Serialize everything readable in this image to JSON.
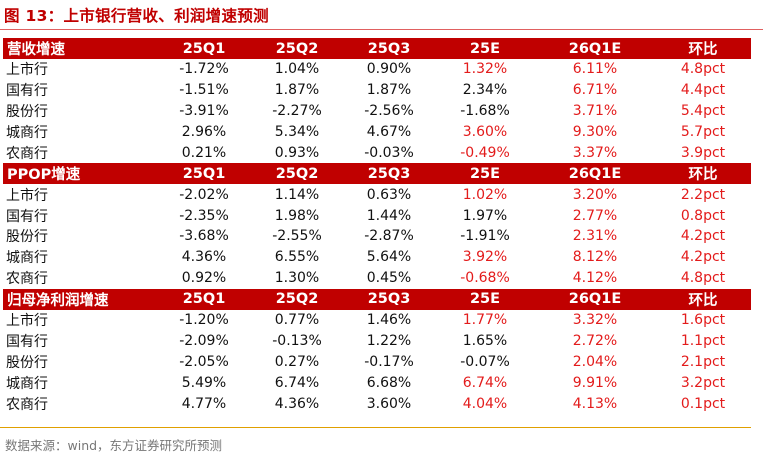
{
  "title": "图 13：上市银行营收、利润增速预测",
  "columns": [
    "25Q1",
    "25Q2",
    "25Q3",
    "25E",
    "26Q1E",
    "环比"
  ],
  "sections": [
    {
      "label": "营收增速",
      "rows": [
        {
          "name": "上市行",
          "cells": [
            "-1.72%",
            "1.04%",
            "0.90%",
            "1.32%",
            "6.11%",
            "4.8pct"
          ]
        },
        {
          "name": "国有行",
          "cells": [
            "-1.51%",
            "1.87%",
            "1.87%",
            "2.34%",
            "6.71%",
            "4.4pct"
          ]
        },
        {
          "name": "股份行",
          "cells": [
            "-3.91%",
            "-2.27%",
            "-2.56%",
            "-1.68%",
            "3.71%",
            "5.4pct"
          ]
        },
        {
          "name": "城商行",
          "cells": [
            "2.96%",
            "5.34%",
            "4.67%",
            "3.60%",
            "9.30%",
            "5.7pct"
          ]
        },
        {
          "name": "农商行",
          "cells": [
            "0.21%",
            "0.93%",
            "-0.03%",
            "-0.49%",
            "3.37%",
            "3.9pct"
          ]
        }
      ]
    },
    {
      "label": "PPOP增速",
      "rows": [
        {
          "name": "上市行",
          "cells": [
            "-2.02%",
            "1.14%",
            "0.63%",
            "1.02%",
            "3.20%",
            "2.2pct"
          ]
        },
        {
          "name": "国有行",
          "cells": [
            "-2.35%",
            "1.98%",
            "1.44%",
            "1.97%",
            "2.77%",
            "0.8pct"
          ]
        },
        {
          "name": "股份行",
          "cells": [
            "-3.68%",
            "-2.55%",
            "-2.87%",
            "-1.91%",
            "2.31%",
            "4.2pct"
          ]
        },
        {
          "name": "城商行",
          "cells": [
            "4.36%",
            "6.55%",
            "5.64%",
            "3.92%",
            "8.12%",
            "4.2pct"
          ]
        },
        {
          "name": "农商行",
          "cells": [
            "0.92%",
            "1.30%",
            "0.45%",
            "-0.68%",
            "4.12%",
            "4.8pct"
          ]
        }
      ]
    },
    {
      "label": "归母净利润增速",
      "rows": [
        {
          "name": "上市行",
          "cells": [
            "-1.20%",
            "0.77%",
            "1.46%",
            "1.77%",
            "3.32%",
            "1.6pct"
          ]
        },
        {
          "name": "国有行",
          "cells": [
            "-2.09%",
            "-0.13%",
            "1.22%",
            "1.65%",
            "2.72%",
            "1.1pct"
          ]
        },
        {
          "name": "股份行",
          "cells": [
            "-2.05%",
            "0.27%",
            "-0.17%",
            "-0.07%",
            "2.04%",
            "2.1pct"
          ]
        },
        {
          "name": "城商行",
          "cells": [
            "5.49%",
            "6.74%",
            "6.68%",
            "6.74%",
            "9.91%",
            "3.2pct"
          ]
        },
        {
          "name": "农商行",
          "cells": [
            "4.77%",
            "4.36%",
            "3.60%",
            "4.04%",
            "4.13%",
            "0.1pct"
          ]
        }
      ]
    }
  ],
  "red_cells": {
    "0": {
      "0": [
        3,
        4,
        5
      ],
      "1": [
        4,
        5
      ],
      "2": [
        4,
        5
      ],
      "3": [
        3,
        4,
        5
      ],
      "4": [
        3,
        4,
        5
      ]
    },
    "1": {
      "0": [
        3,
        4,
        5
      ],
      "1": [
        4,
        5
      ],
      "2": [
        4,
        5
      ],
      "3": [
        3,
        4,
        5
      ],
      "4": [
        3,
        4,
        5
      ]
    },
    "2": {
      "0": [
        3,
        4,
        5
      ],
      "1": [
        4,
        5
      ],
      "2": [
        4,
        5
      ],
      "3": [
        3,
        4,
        5
      ],
      "4": [
        3,
        4,
        5
      ]
    }
  },
  "colors": {
    "header_bg": "#c00000",
    "forecast_text": "#e31b1b",
    "title": "#c00000"
  },
  "source": "数据来源：wind，东方证券研究所预测"
}
